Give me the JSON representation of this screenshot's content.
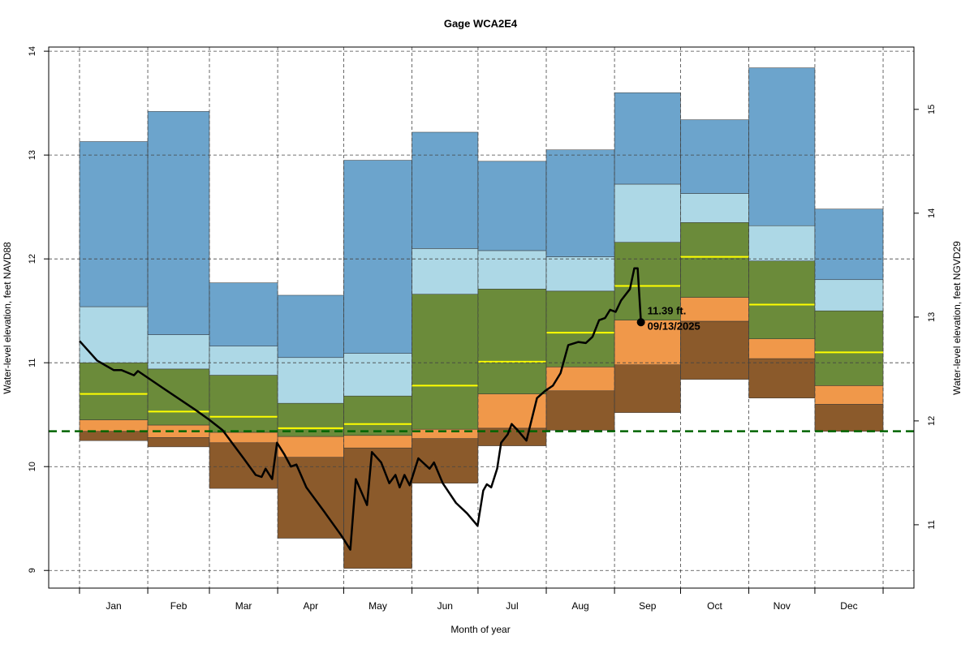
{
  "chart_data": {
    "type": "percentile-band",
    "title": "Gage WCA2E4",
    "xlabel": "Month of year",
    "ylabel": "Water-level elevation, feet NAVD88",
    "y2label": "Water-level elevation, feet NGVD29",
    "categories": [
      "Jan",
      "Feb",
      "Mar",
      "Apr",
      "May",
      "Jun",
      "Jul",
      "Aug",
      "Sep",
      "Oct",
      "Nov",
      "Dec"
    ],
    "xticks": [
      0,
      31,
      59,
      90,
      120,
      151,
      181,
      212,
      243,
      273,
      304,
      334,
      365
    ],
    "xlim": [
      -14,
      379
    ],
    "ylim": [
      8.83,
      14.04
    ],
    "yticks": [
      9,
      10,
      11,
      12,
      13,
      14
    ],
    "y2lim": [
      10.39,
      15.6
    ],
    "y2ticks": [
      11,
      12,
      13,
      14,
      15
    ],
    "grid": true,
    "levels": [
      [
        10.25,
        10.19,
        9.79,
        9.31,
        9.02,
        9.84,
        10.2,
        10.35,
        10.52,
        10.84,
        10.66,
        10.34
      ],
      [
        10.34,
        10.28,
        10.23,
        10.09,
        10.18,
        10.27,
        10.37,
        10.73,
        10.98,
        11.4,
        11.04,
        10.6
      ],
      [
        10.45,
        10.4,
        10.33,
        10.29,
        10.3,
        10.36,
        10.7,
        10.96,
        11.41,
        11.63,
        11.23,
        10.78
      ],
      [
        11.0,
        10.94,
        10.88,
        10.61,
        10.68,
        11.66,
        11.71,
        11.69,
        12.16,
        12.35,
        11.98,
        11.5
      ],
      [
        11.54,
        11.27,
        11.16,
        11.05,
        11.09,
        12.1,
        12.08,
        12.02,
        12.72,
        12.63,
        12.32,
        11.8
      ],
      [
        13.13,
        13.42,
        11.77,
        11.65,
        12.95,
        13.22,
        12.94,
        13.05,
        13.6,
        13.34,
        13.84,
        12.48
      ]
    ],
    "band_colors": [
      "#8b5a2b",
      "#f0984a",
      "#6b8b3a",
      "#add8e6",
      "#6ca4cc"
    ],
    "median": {
      "color": "#ffff00",
      "values": [
        10.7,
        10.53,
        10.48,
        10.37,
        10.41,
        10.78,
        11.01,
        11.29,
        11.74,
        12.02,
        11.56,
        11.1
      ]
    },
    "reference_line": {
      "value": 10.34,
      "color": "#006400"
    },
    "line": {
      "color": "#000000",
      "x": [
        0,
        8,
        15.5,
        19,
        24.7,
        26.5,
        37.6,
        52.4,
        59,
        65,
        74.5,
        80,
        82.7,
        84.5,
        87.5,
        89.7,
        93,
        96,
        98.5,
        103,
        111,
        118.8,
        123,
        125.5,
        130.6,
        132.8,
        137,
        140.7,
        143.5,
        145.4,
        147.6,
        150,
        153.9,
        159,
        161,
        165,
        171,
        176,
        180.8,
        183.4,
        185,
        187,
        189.7,
        191.5,
        194.5,
        196.3,
        199,
        203,
        207.8,
        211.5,
        215,
        218.5,
        222,
        226.6,
        230,
        233,
        236,
        238.7,
        241,
        243.5,
        246,
        250,
        252,
        253.5,
        255
      ],
      "values": [
        11.21,
        11.02,
        10.93,
        10.93,
        10.88,
        10.92,
        10.76,
        10.55,
        10.45,
        10.35,
        10.08,
        9.92,
        9.9,
        9.98,
        9.88,
        10.23,
        10.12,
        10.0,
        10.02,
        9.8,
        9.57,
        9.34,
        9.2,
        9.88,
        9.63,
        10.14,
        10.04,
        9.84,
        9.92,
        9.8,
        9.92,
        9.82,
        10.08,
        9.98,
        10.04,
        9.84,
        9.65,
        9.55,
        9.43,
        9.77,
        9.83,
        9.8,
        9.98,
        10.23,
        10.31,
        10.41,
        10.35,
        10.25,
        10.66,
        10.73,
        10.78,
        10.9,
        11.17,
        11.2,
        11.19,
        11.25,
        11.41,
        11.43,
        11.51,
        11.49,
        11.6,
        11.71,
        11.91,
        11.91,
        11.39
      ]
    },
    "current": {
      "x": 255,
      "value": 11.39,
      "value_label": "11.39 ft.",
      "date_label": "09/13/2025"
    }
  }
}
